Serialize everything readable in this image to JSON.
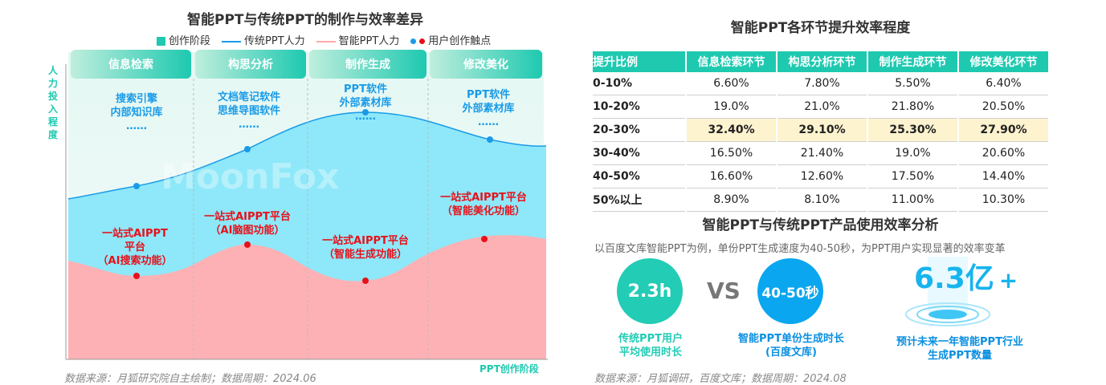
{
  "left": {
    "title": "智能PPT与传统PPT的制作与效率差异",
    "legend": [
      "创作阶段",
      "传统PPT人力",
      "智能PPT人力",
      "用户创作触点"
    ],
    "y_axis_label": "人力投入程度",
    "x_axis_label": "PPT创作阶段",
    "stages": [
      "信息检索",
      "构思分析",
      "制作生成",
      "修改美化"
    ],
    "tools": [
      [
        "搜索引擎",
        "内部知识库",
        "……"
      ],
      [
        "文档笔记软件",
        "思维导图软件",
        "……"
      ],
      [
        "PPT软件",
        "外部素材库",
        "……"
      ],
      [
        "PPT软件",
        "外部素材库",
        "……"
      ]
    ],
    "touchpoints": [
      [
        "一站式AIPPT",
        "平台",
        "（AI搜索功能）"
      ],
      [
        "一站式AIPPT平台",
        "（AI脑图功能）"
      ],
      [
        "一站式AIPPT平台",
        "（智能生成功能）"
      ],
      [
        "一站式AIPPT平台",
        "（智能美化功能）"
      ]
    ],
    "watermark": "MoonFox",
    "source": "数据来源：月狐研究院自主绘制；数据周期：2024.06",
    "colors": {
      "stage": "#1ec9b0",
      "traditional": "#1a9be8",
      "smart": "#ffaaaa",
      "blue_dot": "#1a9be8",
      "red_dot": "#e8101a"
    }
  },
  "chart_data": {
    "type": "table",
    "title": "智能PPT各环节提升效率程度",
    "columns": [
      "提升比例",
      "信息检索环节",
      "构思分析环节",
      "制作生成环节",
      "修改美化环节"
    ],
    "rows": [
      [
        "0-10%",
        "6.60%",
        "7.80%",
        "5.50%",
        "6.40%"
      ],
      [
        "10-20%",
        "19.0%",
        "21.0%",
        "21.80%",
        "20.50%"
      ],
      [
        "20-30%",
        "32.40%",
        "29.10%",
        "25.30%",
        "27.90%"
      ],
      [
        "30-40%",
        "16.50%",
        "21.40%",
        "19.0%",
        "20.60%"
      ],
      [
        "40-50%",
        "16.60%",
        "12.60%",
        "17.50%",
        "14.40%"
      ],
      [
        "50%以上",
        "8.90%",
        "8.10%",
        "11.00%",
        "10.30%"
      ]
    ],
    "highlight_row": "20-30%"
  },
  "right": {
    "title2": "智能PPT与传统PPT产品使用效率分析",
    "subtitle": "以百度文库智能PPT为例，单份PPT生成速度为40-50秒，为PPT用户实现显著的效率变革",
    "c1_value": "2.3h",
    "c1_caption": [
      "传统PPT用户",
      "平均使用时长"
    ],
    "vs": "VS",
    "c2_value": "40-50秒",
    "c2_caption": [
      "智能PPT单份生成时长",
      "(百度文库)"
    ],
    "big_value": "6.3亿",
    "big_plus": "+",
    "big_caption": [
      "预计未来一年智能PPT行业",
      "生成PPT数量"
    ],
    "source": "数据来源：月狐调研，百度文库；数据周期：2024.08"
  }
}
